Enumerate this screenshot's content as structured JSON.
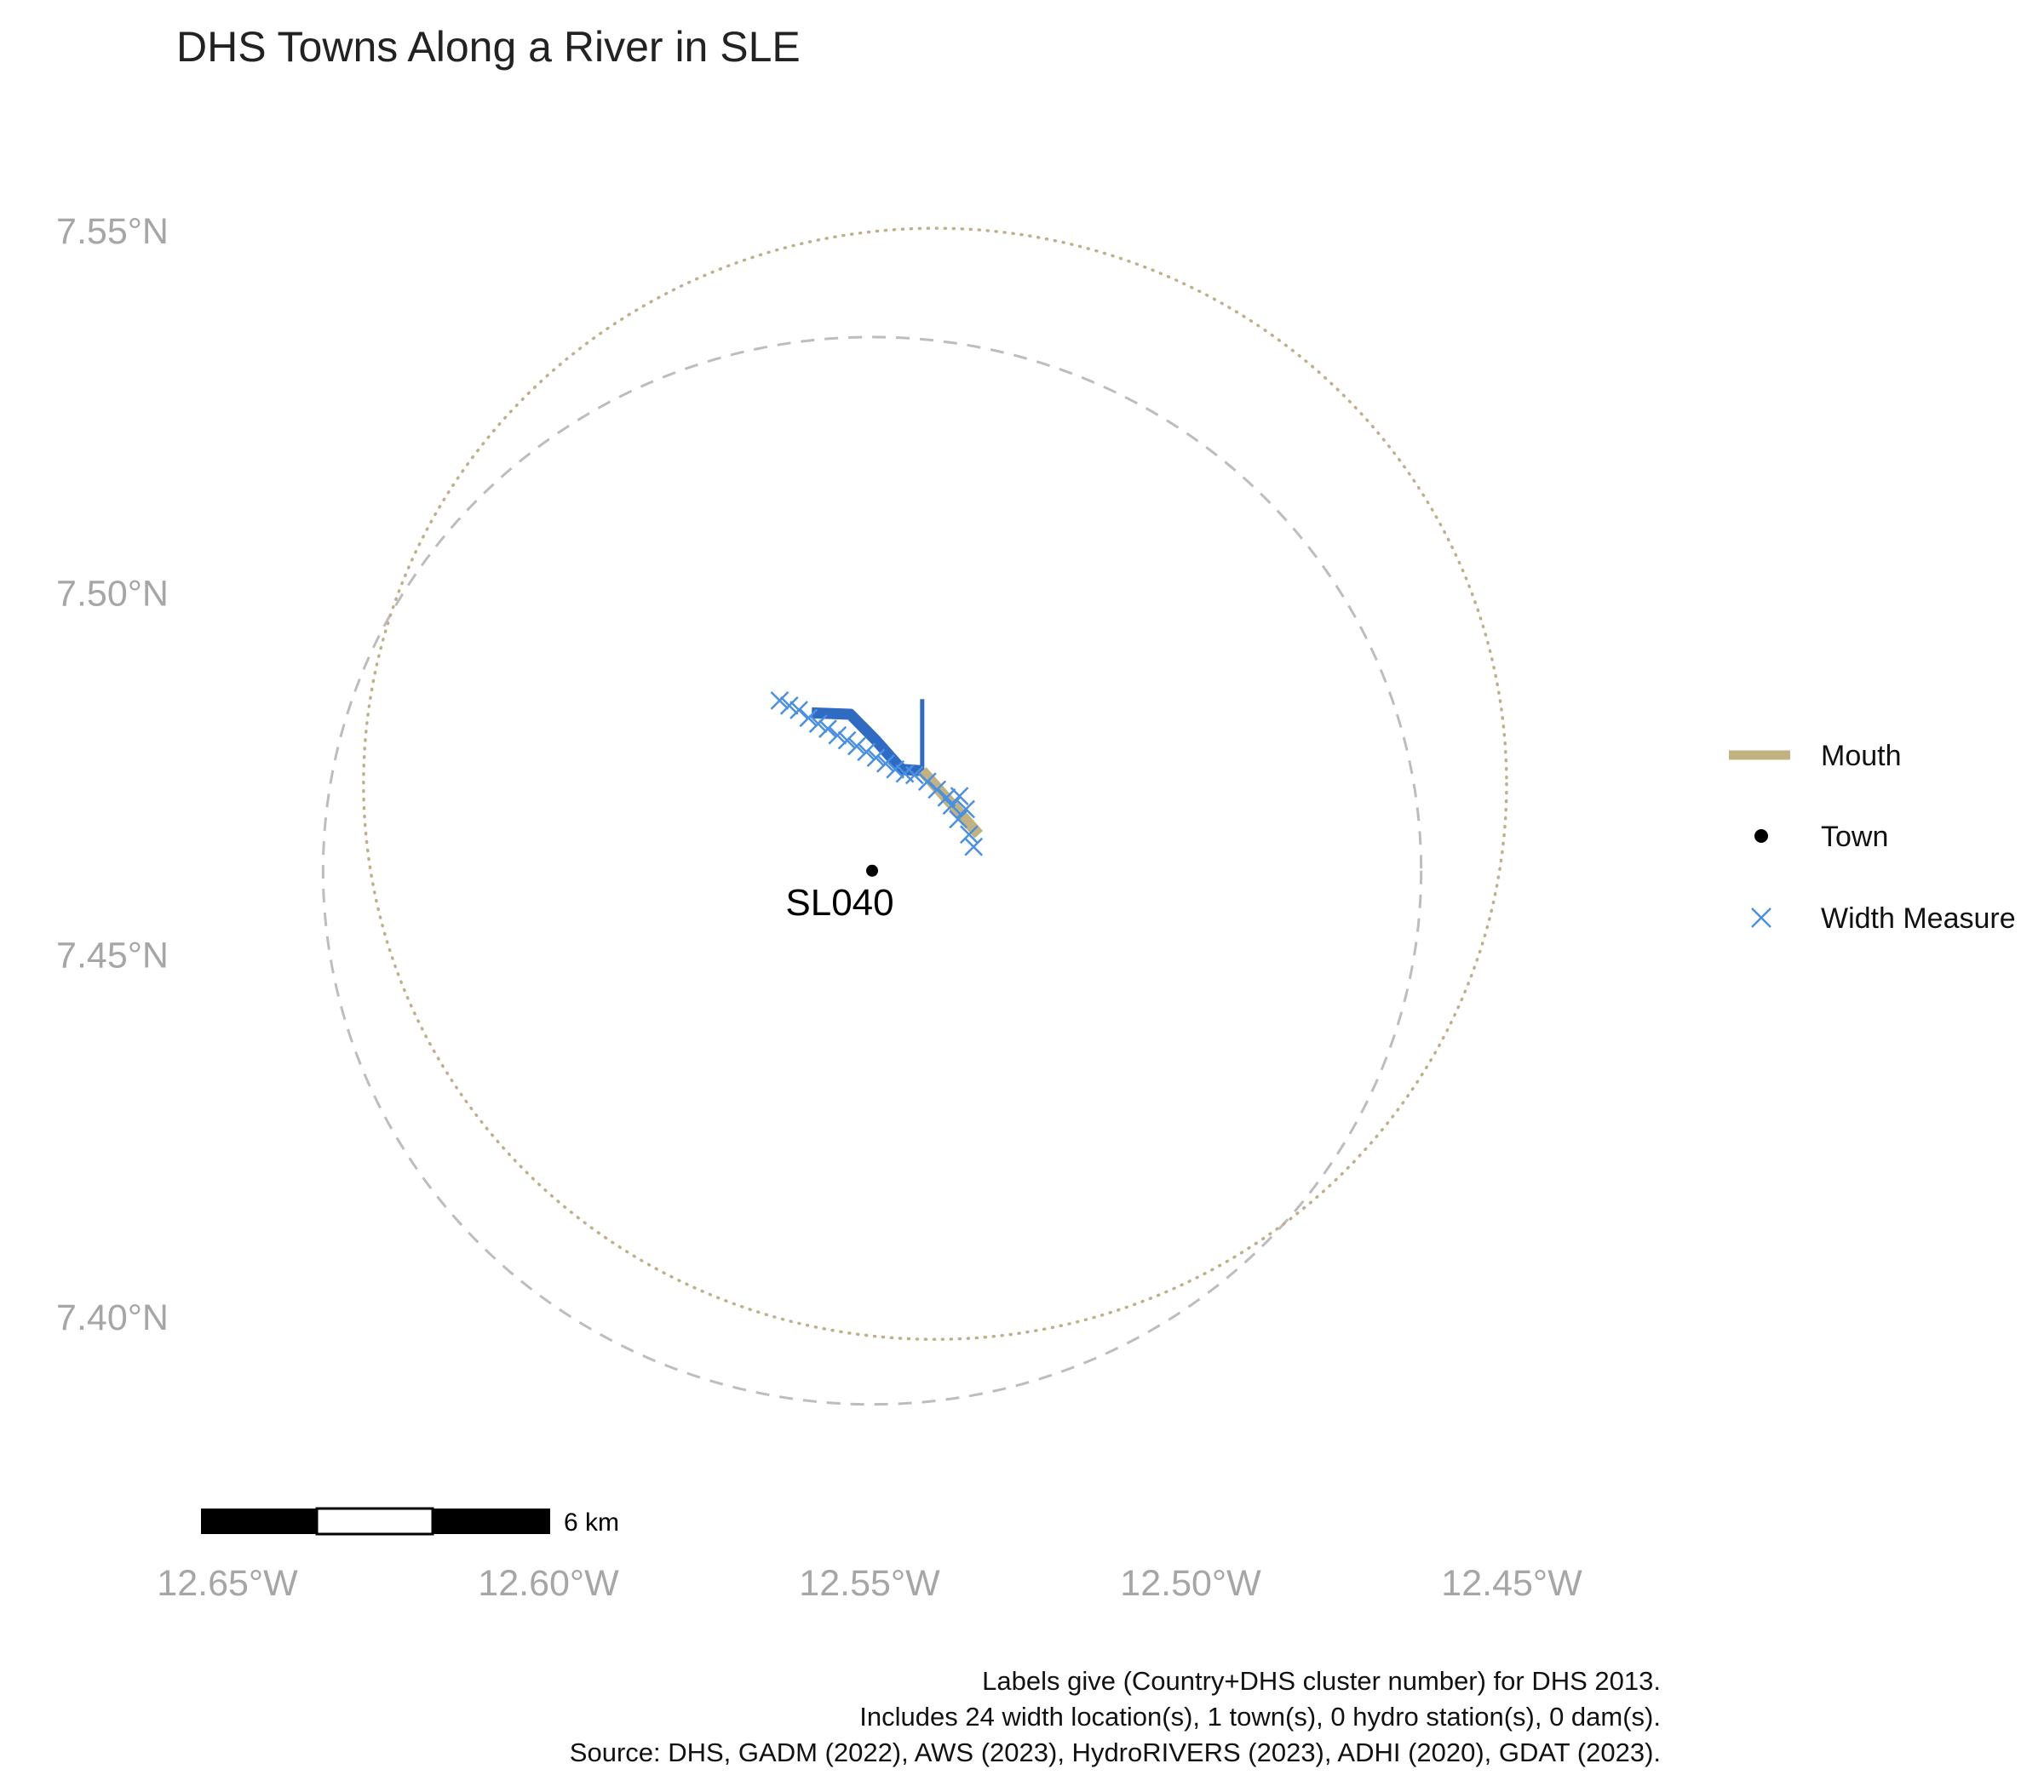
{
  "title": "DHS Towns Along a River in SLE",
  "axes": {
    "x": {
      "ticks": [
        {
          "value": -12.65,
          "label": "12.65°W"
        },
        {
          "value": -12.6,
          "label": "12.60°W"
        },
        {
          "value": -12.55,
          "label": "12.55°W"
        },
        {
          "value": -12.5,
          "label": "12.50°W"
        },
        {
          "value": -12.45,
          "label": "12.45°W"
        }
      ]
    },
    "y": {
      "ticks": [
        {
          "value": 7.55,
          "label": "7.55°N"
        },
        {
          "value": 7.5,
          "label": "7.50°N"
        },
        {
          "value": 7.45,
          "label": "7.45°N"
        },
        {
          "value": 7.4,
          "label": "7.40°N"
        }
      ]
    },
    "label_color": "#a6a6a6"
  },
  "map": {
    "lon_range": [
      -12.655,
      -12.43
    ],
    "lat_range": [
      7.375,
      7.56
    ],
    "circles": [
      {
        "kind": "dashed",
        "center_lon": -12.5496,
        "center_lat": 7.4615,
        "radius_deg": 0.0855,
        "color": "#bdbdbd"
      },
      {
        "kind": "dotted",
        "center_lon": -12.5398,
        "center_lat": 7.4735,
        "radius_deg": 0.089,
        "color": "#bfb08a"
      }
    ],
    "river": {
      "color": "#2f6bc2",
      "segments": [
        {
          "width": 13,
          "points": [
            [
              -12.559,
              7.4833
            ],
            [
              -12.553,
              7.4831
            ],
            [
              -12.549,
              7.4795
            ],
            [
              -12.545,
              7.4755
            ],
            [
              -12.5418,
              7.4753
            ]
          ]
        },
        {
          "width": 5,
          "points": [
            [
              -12.5418,
              7.4753
            ],
            [
              -12.5418,
              7.4852
            ]
          ]
        }
      ]
    },
    "mouth": {
      "color": "#c2b280",
      "points": [
        [
          -12.5418,
          7.4753
        ],
        [
          -12.533,
          7.4665
        ]
      ]
    },
    "width_measures": {
      "color": "#4a90e2",
      "points": [
        [
          -12.564,
          7.485
        ],
        [
          -12.5625,
          7.4843
        ],
        [
          -12.561,
          7.4837
        ],
        [
          -12.5595,
          7.4826
        ],
        [
          -12.558,
          7.4818
        ],
        [
          -12.5565,
          7.4811
        ],
        [
          -12.555,
          7.4802
        ],
        [
          -12.5535,
          7.4795
        ],
        [
          -12.552,
          7.4787
        ],
        [
          -12.5505,
          7.4779
        ],
        [
          -12.549,
          7.4771
        ],
        [
          -12.5475,
          7.4763
        ],
        [
          -12.546,
          7.4755
        ],
        [
          -12.5445,
          7.4749
        ],
        [
          -12.543,
          7.4747
        ],
        [
          -12.541,
          7.4738
        ],
        [
          -12.5395,
          7.4727
        ],
        [
          -12.538,
          7.4716
        ],
        [
          -12.5372,
          7.4705
        ],
        [
          -12.536,
          7.4718
        ],
        [
          -12.535,
          7.47
        ],
        [
          -12.5362,
          7.4686
        ],
        [
          -12.5345,
          7.4665
        ],
        [
          -12.5338,
          7.4648
        ]
      ]
    },
    "towns": [
      {
        "id": "SL040",
        "lon": -12.5496,
        "lat": 7.4615
      }
    ]
  },
  "legend": {
    "items": [
      {
        "key": "mouth",
        "label": "Mouth"
      },
      {
        "key": "town",
        "label": "Town"
      },
      {
        "key": "width",
        "label": "Width Measure"
      }
    ]
  },
  "scalebar": {
    "label": "6 km"
  },
  "caption": {
    "lines": [
      "Labels give (Country+DHS cluster number) for DHS 2013.",
      "Includes 24 width location(s), 1 town(s), 0 hydro station(s), 0 dam(s).",
      "Source: DHS, GADM (2022), AWS (2023), HydroRIVERS (2023), ADHI (2020), GDAT (2023)."
    ]
  }
}
